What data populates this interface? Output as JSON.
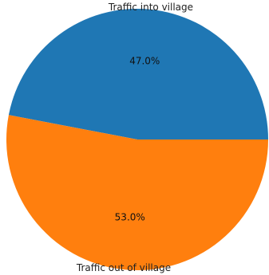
{
  "chart_data": {
    "type": "pie",
    "title": "",
    "slices": [
      {
        "label": "Traffic into village",
        "value": 47.0,
        "pct_label": "47.0%",
        "color": "#1f77b4"
      },
      {
        "label": "Traffic out of village",
        "value": 53.0,
        "pct_label": "53.0%",
        "color": "#ff7f0e"
      }
    ],
    "legend": "none"
  }
}
